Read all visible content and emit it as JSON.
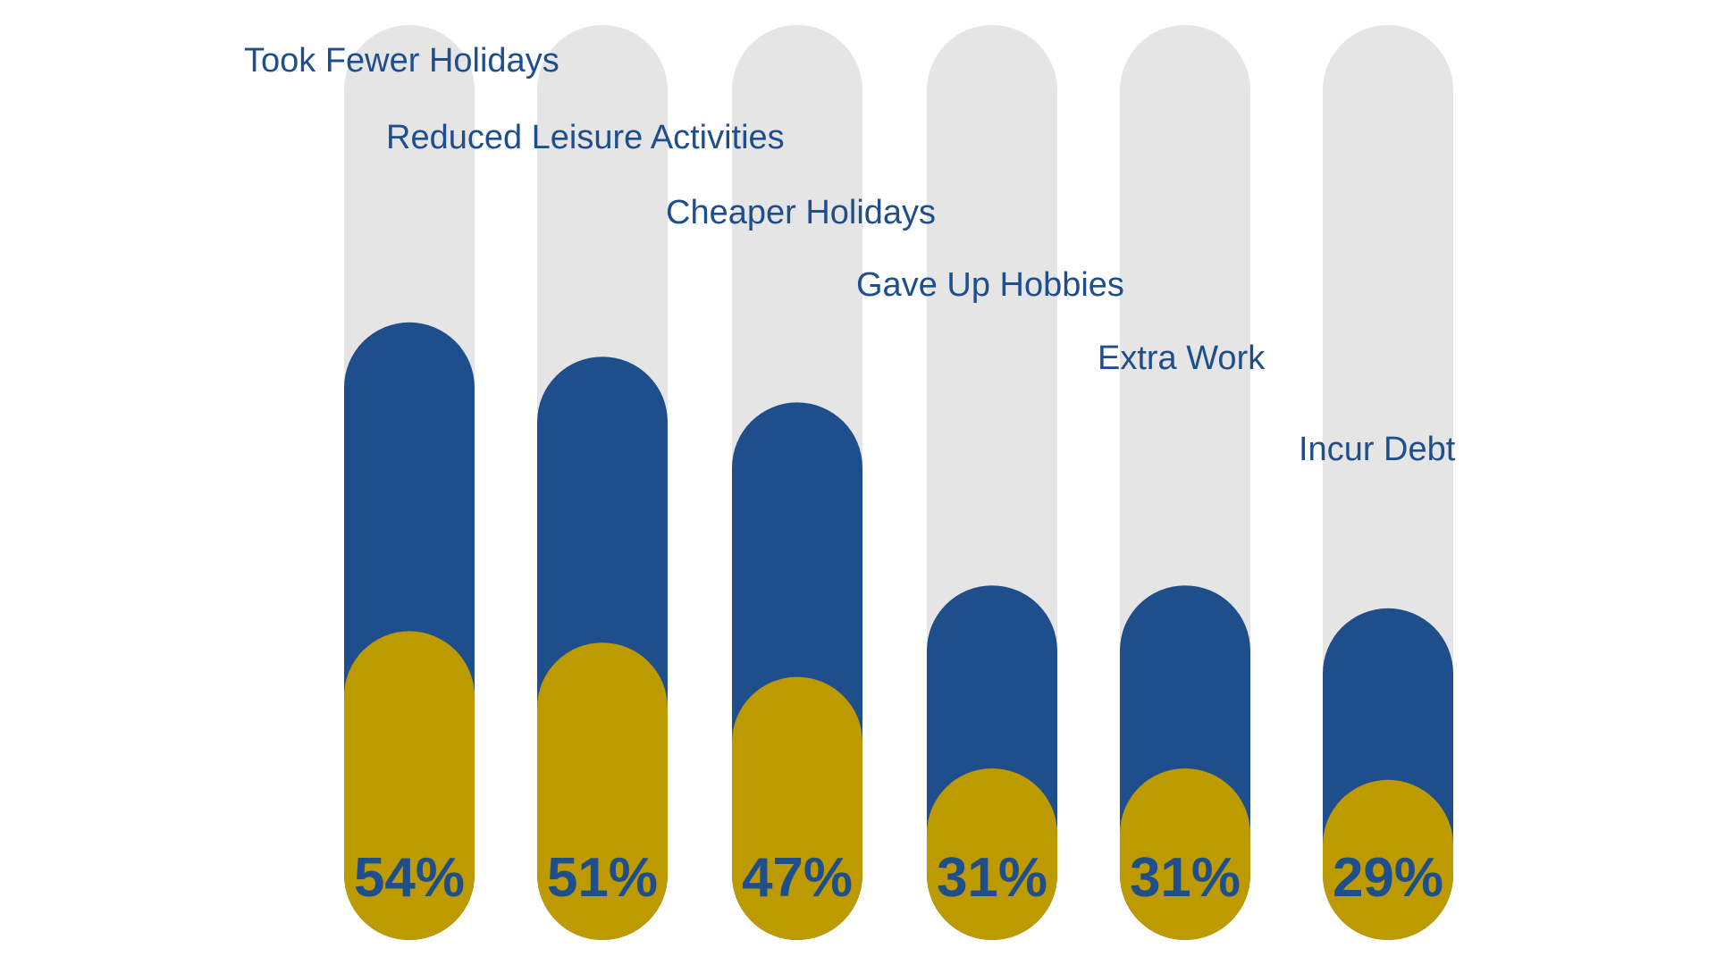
{
  "colors": {
    "track": "#e5e5e5",
    "total": "#1f4e8c",
    "inner": "#bc9a00",
    "text": "#1f4e8c"
  },
  "chart_data": {
    "type": "bar",
    "categories": [
      "Took Fewer Holidays",
      "Reduced Leisure Activities",
      "Cheaper Holidays",
      "Gave Up Hobbies",
      "Extra Work",
      "Incur Debt"
    ],
    "value_labels": [
      "54%",
      "51%",
      "47%",
      "31%",
      "31%",
      "29%"
    ],
    "series": [
      {
        "values": [
          54,
          51,
          47,
          31,
          31,
          29
        ]
      },
      {
        "values": [
          27,
          26,
          23,
          15,
          15,
          14
        ]
      }
    ],
    "ylim": [
      0,
      80
    ],
    "grid": false,
    "legend": "none"
  }
}
